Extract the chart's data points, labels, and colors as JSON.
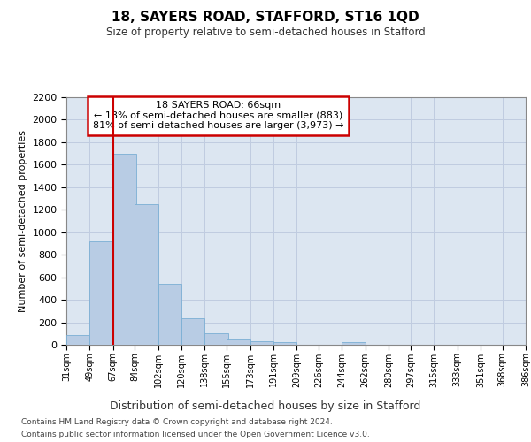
{
  "title1": "18, SAYERS ROAD, STAFFORD, ST16 1QD",
  "title2": "Size of property relative to semi-detached houses in Stafford",
  "xlabel": "Distribution of semi-detached houses by size in Stafford",
  "ylabel": "Number of semi-detached properties",
  "footer1": "Contains HM Land Registry data © Crown copyright and database right 2024.",
  "footer2": "Contains public sector information licensed under the Open Government Licence v3.0.",
  "annotation_title": "18 SAYERS ROAD: 66sqm",
  "annotation_line1": "← 18% of semi-detached houses are smaller (883)",
  "annotation_line2": "81% of semi-detached houses are larger (3,973) →",
  "vline_x": 67,
  "bins": [
    31,
    49,
    67,
    84,
    102,
    120,
    138,
    155,
    173,
    191,
    209,
    226,
    244,
    262,
    280,
    297,
    315,
    333,
    351,
    368,
    386
  ],
  "counts": [
    90,
    920,
    1700,
    1250,
    540,
    235,
    100,
    45,
    30,
    20,
    0,
    0,
    20,
    0,
    0,
    0,
    0,
    0,
    0,
    0
  ],
  "bar_color": "#b8cce4",
  "bar_edge_color": "#7bafd4",
  "vline_color": "#cc0000",
  "grid_color": "#c0cce0",
  "bg_color": "#dce6f1",
  "annotation_box_color": "#ffffff",
  "annotation_border_color": "#cc0000",
  "ylim_max": 2200,
  "yticks": [
    0,
    200,
    400,
    600,
    800,
    1000,
    1200,
    1400,
    1600,
    1800,
    2000,
    2200
  ]
}
